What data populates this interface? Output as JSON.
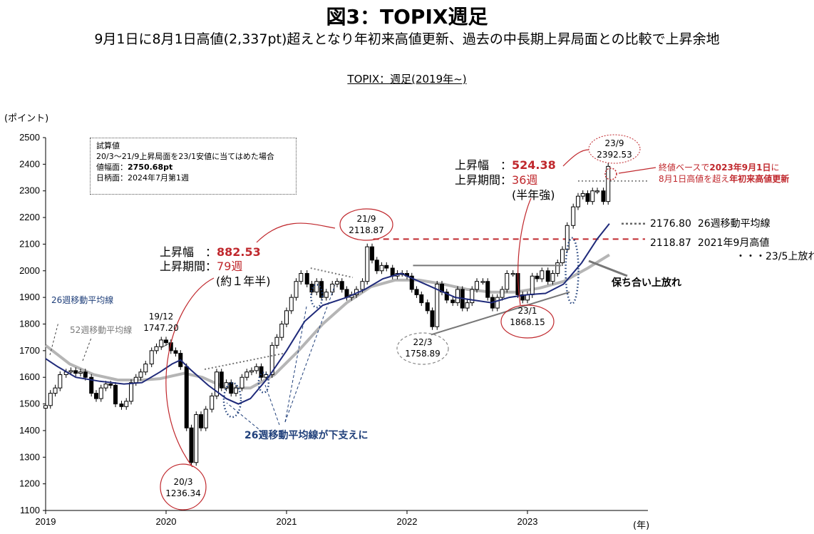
{
  "header": {
    "title": "図3：TOPIX週足",
    "subtitle": "9月1日に8月1日高値(2,337pt)超えとなり年初来高値更新、過去の中長期上昇局面との比較で上昇余地",
    "chart_title": "TOPIX：週足(2019年~)"
  },
  "axes": {
    "y_unit": "(ポイント)",
    "x_unit": "(年)"
  },
  "note_box": {
    "line1": "試算値",
    "line2": "20/3～21/9上昇局面を23/1安値に当てはめた場合",
    "line3_label": "値幅面：",
    "line3_value": "2750.68pt",
    "line4": "日柄面：2024年7月第1週"
  },
  "rally_2020": {
    "width_label": "上昇幅　：",
    "width_value": "882.53",
    "period_label": "上昇期間：",
    "period_value": "79週",
    "period_note": "(約１年半)"
  },
  "rally_2023": {
    "width_label": "上昇幅　：",
    "width_value": "524.38",
    "period_label": "上昇期間：",
    "period_value": "36週",
    "period_note": "(半年強)"
  },
  "points": {
    "p2019_12_date": "19/12",
    "p2019_12_val": "1747.20",
    "p2020_3_date": "20/3",
    "p2020_3_val": "1236.34",
    "p2021_9_date": "21/9",
    "p2021_9_val": "2118.87",
    "p2022_3_date": "22/3",
    "p2022_3_val": "1758.89",
    "p2023_1_date": "23/1",
    "p2023_1_val": "1868.15",
    "p2023_9_date": "23/9",
    "p2023_9_val": "2392.53"
  },
  "labels": {
    "ma26": "26週移動平均線",
    "ma52": "52週移動平均線",
    "support": "26週移動平均線が下支えに",
    "consolidation": "保ち合い上放れ",
    "close_note_1a": "終値ベースで",
    "close_note_1b": "2023年9月1日",
    "close_note_1c": "に",
    "close_note_2a": "8月1日高値を超え",
    "close_note_2b": "年初来高値更新",
    "ma26_level": "2176.80",
    "ma26_level_label": "26週移動平均線",
    "high_2021_level": "2118.87",
    "high_2021_label": "2021年9月高値",
    "breakout_note": "・・・23/5上放れ"
  },
  "colors": {
    "candle_up": "#ffffff",
    "candle_down": "#000000",
    "ma26": "#1f2a7a",
    "ma52": "#b5b5b5",
    "accent_red": "#c0282d",
    "support_blue": "#1f3f7a"
  },
  "chart_data": {
    "type": "candlestick",
    "title": "TOPIX：週足(2019年~)",
    "ylabel": "(ポイント)",
    "xlabel": "(年)",
    "ylim": [
      1100,
      2500
    ],
    "y_ticks": [
      1100,
      1200,
      1300,
      1400,
      1500,
      1600,
      1700,
      1800,
      1900,
      2000,
      2100,
      2200,
      2300,
      2400,
      2500
    ],
    "x_ticks": [
      "2019",
      "2020",
      "2021",
      "2022",
      "2023"
    ],
    "x_range": [
      2019.0,
      2024.0
    ],
    "close_series": [
      [
        2019.0,
        1494
      ],
      [
        2019.04,
        1540
      ],
      [
        2019.08,
        1560
      ],
      [
        2019.12,
        1610
      ],
      [
        2019.17,
        1620
      ],
      [
        2019.21,
        1625
      ],
      [
        2019.25,
        1615
      ],
      [
        2019.29,
        1620
      ],
      [
        2019.33,
        1600
      ],
      [
        2019.38,
        1540
      ],
      [
        2019.42,
        1520
      ],
      [
        2019.46,
        1560
      ],
      [
        2019.5,
        1575
      ],
      [
        2019.54,
        1570
      ],
      [
        2019.58,
        1500
      ],
      [
        2019.63,
        1490
      ],
      [
        2019.67,
        1510
      ],
      [
        2019.71,
        1580
      ],
      [
        2019.75,
        1600
      ],
      [
        2019.79,
        1620
      ],
      [
        2019.83,
        1650
      ],
      [
        2019.88,
        1700
      ],
      [
        2019.92,
        1715
      ],
      [
        2019.96,
        1740
      ],
      [
        2020.0,
        1730
      ],
      [
        2020.04,
        1700
      ],
      [
        2020.08,
        1690
      ],
      [
        2020.12,
        1640
      ],
      [
        2020.17,
        1410
      ],
      [
        2020.21,
        1280
      ],
      [
        2020.25,
        1460
      ],
      [
        2020.29,
        1410
      ],
      [
        2020.33,
        1480
      ],
      [
        2020.38,
        1530
      ],
      [
        2020.42,
        1620
      ],
      [
        2020.46,
        1560
      ],
      [
        2020.5,
        1580
      ],
      [
        2020.54,
        1540
      ],
      [
        2020.58,
        1560
      ],
      [
        2020.63,
        1600
      ],
      [
        2020.67,
        1620
      ],
      [
        2020.71,
        1625
      ],
      [
        2020.75,
        1640
      ],
      [
        2020.79,
        1600
      ],
      [
        2020.83,
        1610
      ],
      [
        2020.88,
        1720
      ],
      [
        2020.92,
        1750
      ],
      [
        2020.96,
        1800
      ],
      [
        2021.0,
        1850
      ],
      [
        2021.04,
        1900
      ],
      [
        2021.08,
        1960
      ],
      [
        2021.12,
        1990
      ],
      [
        2021.17,
        1950
      ],
      [
        2021.21,
        1920
      ],
      [
        2021.25,
        1960
      ],
      [
        2021.29,
        1900
      ],
      [
        2021.33,
        1920
      ],
      [
        2021.38,
        1950
      ],
      [
        2021.42,
        1960
      ],
      [
        2021.46,
        1930
      ],
      [
        2021.5,
        1900
      ],
      [
        2021.54,
        1910
      ],
      [
        2021.58,
        1930
      ],
      [
        2021.63,
        1960
      ],
      [
        2021.67,
        2090
      ],
      [
        2021.71,
        2040
      ],
      [
        2021.75,
        2000
      ],
      [
        2021.79,
        2020
      ],
      [
        2021.83,
        2010
      ],
      [
        2021.88,
        1980
      ],
      [
        2021.92,
        1990
      ],
      [
        2021.96,
        1990
      ],
      [
        2022.0,
        1980
      ],
      [
        2022.04,
        1930
      ],
      [
        2022.08,
        1910
      ],
      [
        2022.12,
        1880
      ],
      [
        2022.17,
        1850
      ],
      [
        2022.21,
        1790
      ],
      [
        2022.25,
        1950
      ],
      [
        2022.29,
        1920
      ],
      [
        2022.33,
        1890
      ],
      [
        2022.38,
        1880
      ],
      [
        2022.42,
        1930
      ],
      [
        2022.46,
        1860
      ],
      [
        2022.5,
        1880
      ],
      [
        2022.54,
        1930
      ],
      [
        2022.58,
        1960
      ],
      [
        2022.63,
        1960
      ],
      [
        2022.67,
        1900
      ],
      [
        2022.71,
        1860
      ],
      [
        2022.75,
        1900
      ],
      [
        2022.79,
        1930
      ],
      [
        2022.83,
        1990
      ],
      [
        2022.88,
        1990
      ],
      [
        2022.92,
        1910
      ],
      [
        2022.96,
        1890
      ],
      [
        2023.0,
        1910
      ],
      [
        2023.04,
        1980
      ],
      [
        2023.08,
        1970
      ],
      [
        2023.12,
        2000
      ],
      [
        2023.17,
        1960
      ],
      [
        2023.21,
        1990
      ],
      [
        2023.25,
        2030
      ],
      [
        2023.29,
        2080
      ],
      [
        2023.33,
        2170
      ],
      [
        2023.38,
        2240
      ],
      [
        2023.42,
        2280
      ],
      [
        2023.46,
        2290
      ],
      [
        2023.5,
        2260
      ],
      [
        2023.54,
        2300
      ],
      [
        2023.58,
        2300
      ],
      [
        2023.63,
        2260
      ],
      [
        2023.67,
        2392
      ]
    ],
    "ma26_series": [
      [
        2019.0,
        1670
      ],
      [
        2019.1,
        1640
      ],
      [
        2019.25,
        1600
      ],
      [
        2019.45,
        1585
      ],
      [
        2019.65,
        1575
      ],
      [
        2019.8,
        1580
      ],
      [
        2019.95,
        1620
      ],
      [
        2020.05,
        1650
      ],
      [
        2020.12,
        1665
      ],
      [
        2020.2,
        1630
      ],
      [
        2020.35,
        1570
      ],
      [
        2020.5,
        1520
      ],
      [
        2020.6,
        1500
      ],
      [
        2020.7,
        1520
      ],
      [
        2020.85,
        1600
      ],
      [
        2021.0,
        1700
      ],
      [
        2021.15,
        1810
      ],
      [
        2021.3,
        1870
      ],
      [
        2021.5,
        1900
      ],
      [
        2021.65,
        1930
      ],
      [
        2021.8,
        1970
      ],
      [
        2021.95,
        1990
      ],
      [
        2022.1,
        1960
      ],
      [
        2022.25,
        1930
      ],
      [
        2022.4,
        1900
      ],
      [
        2022.55,
        1890
      ],
      [
        2022.7,
        1880
      ],
      [
        2022.85,
        1900
      ],
      [
        2023.0,
        1910
      ],
      [
        2023.15,
        1915
      ],
      [
        2023.3,
        1950
      ],
      [
        2023.45,
        2030
      ],
      [
        2023.58,
        2120
      ],
      [
        2023.68,
        2176.8
      ]
    ],
    "ma52_series": [
      [
        2019.0,
        1720
      ],
      [
        2019.2,
        1650
      ],
      [
        2019.4,
        1610
      ],
      [
        2019.6,
        1590
      ],
      [
        2019.8,
        1590
      ],
      [
        2019.95,
        1595
      ],
      [
        2020.15,
        1615
      ],
      [
        2020.3,
        1600
      ],
      [
        2020.5,
        1560
      ],
      [
        2020.7,
        1560
      ],
      [
        2020.9,
        1610
      ],
      [
        2021.1,
        1700
      ],
      [
        2021.3,
        1800
      ],
      [
        2021.5,
        1880
      ],
      [
        2021.7,
        1940
      ],
      [
        2021.9,
        1965
      ],
      [
        2022.1,
        1965
      ],
      [
        2022.3,
        1950
      ],
      [
        2022.5,
        1930
      ],
      [
        2022.7,
        1920
      ],
      [
        2022.9,
        1920
      ],
      [
        2023.1,
        1935
      ],
      [
        2023.3,
        1960
      ],
      [
        2023.5,
        2010
      ],
      [
        2023.68,
        2060
      ]
    ],
    "annotations": [
      {
        "date": "19/12",
        "value": 1747.2
      },
      {
        "date": "20/3",
        "value": 1236.34
      },
      {
        "date": "21/9",
        "value": 2118.87
      },
      {
        "date": "22/3",
        "value": 1758.89
      },
      {
        "date": "23/1",
        "value": 1868.15
      },
      {
        "date": "23/9",
        "value": 2392.53
      }
    ],
    "reference_lines": [
      {
        "label": "2021年9月高値",
        "value": 2118.87
      },
      {
        "label": "26週移動平均線",
        "value": 2176.8
      }
    ],
    "grid": false,
    "legend": "none"
  }
}
